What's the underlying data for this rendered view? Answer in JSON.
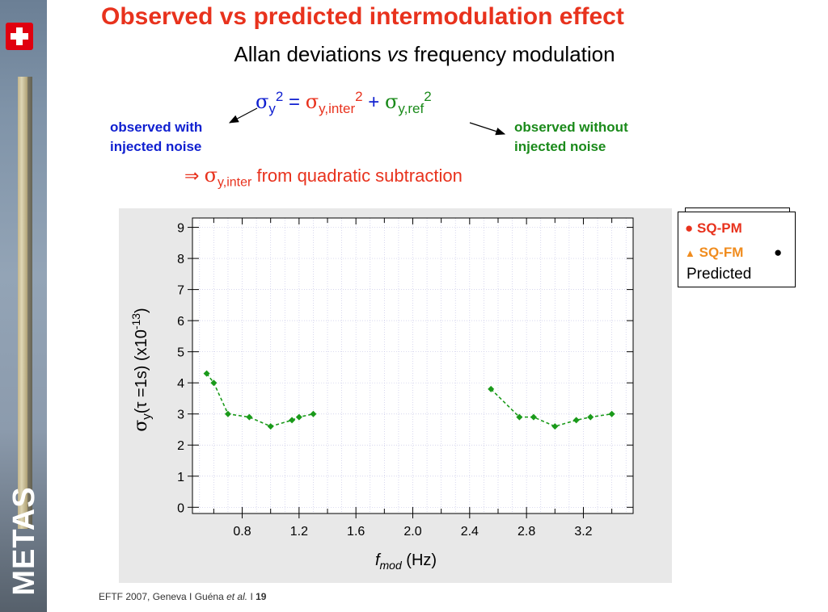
{
  "slide": {
    "title": "Observed vs predicted intermodulation effect",
    "subtitle_prefix": "Allan deviations ",
    "subtitle_vs": "vs",
    "subtitle_suffix": " frequency modulation"
  },
  "formula": {
    "sigma": "σ",
    "lhs_sub": "y",
    "sq": "2",
    "equals": " = ",
    "term1_sub": "y,inter",
    "plus": " + ",
    "term2_sub": "y,ref"
  },
  "notes": {
    "left_line1": "observed with",
    "left_line2": "injected noise",
    "right_line1": "observed without",
    "right_line2": "injected noise"
  },
  "implication": {
    "arrow": "⇒",
    "sigma": "σ",
    "sub": "y,inter",
    "text": " from quadratic subtraction"
  },
  "legend": {
    "item1_marker": "●",
    "item1": "SQ-PM",
    "item2_marker": "▲",
    "item2": "SQ-FM",
    "item3_marker": "●",
    "item3": "Predicted",
    "colors": {
      "sq_pm": "#e8321d",
      "sq_fm": "#f08c1e",
      "predicted": "#000000"
    }
  },
  "footer": {
    "text": "EFTF 2007, Geneva I  Guéna ",
    "etal": "et al.",
    "sep": "  I  ",
    "page": "19"
  },
  "sidebar": {
    "logo": "METAS"
  },
  "chart_data": {
    "type": "line",
    "xlabel_italic": "f",
    "xlabel_sub": "mod",
    "xlabel_unit": " (Hz)",
    "ylabel_sigma": "σ",
    "ylabel_sub": "y",
    "ylabel_mid": "(τ =1s)  (x10",
    "ylabel_exp": "-13",
    "ylabel_end": ")",
    "xlim": [
      0.45,
      3.55
    ],
    "ylim": [
      -0.2,
      9.3
    ],
    "x_ticks": [
      "0.8",
      "1.2",
      "1.6",
      "2.0",
      "2.4",
      "2.8",
      "3.2"
    ],
    "y_ticks": [
      "0",
      "1",
      "2",
      "3",
      "4",
      "5",
      "6",
      "7",
      "8",
      "9"
    ],
    "grid": true,
    "series": [
      {
        "color": "#1a9a1a",
        "segments": [
          [
            [
              0.55,
              4.3
            ],
            [
              0.6,
              4.0
            ],
            [
              0.7,
              3.0
            ],
            [
              0.85,
              2.9
            ],
            [
              1.0,
              2.6
            ],
            [
              1.15,
              2.8
            ],
            [
              1.2,
              2.9
            ],
            [
              1.3,
              3.0
            ]
          ],
          [
            [
              2.55,
              3.8
            ],
            [
              2.75,
              2.9
            ],
            [
              2.85,
              2.9
            ],
            [
              3.0,
              2.6
            ],
            [
              3.15,
              2.8
            ],
            [
              3.25,
              2.9
            ],
            [
              3.4,
              3.0
            ]
          ]
        ]
      }
    ]
  }
}
